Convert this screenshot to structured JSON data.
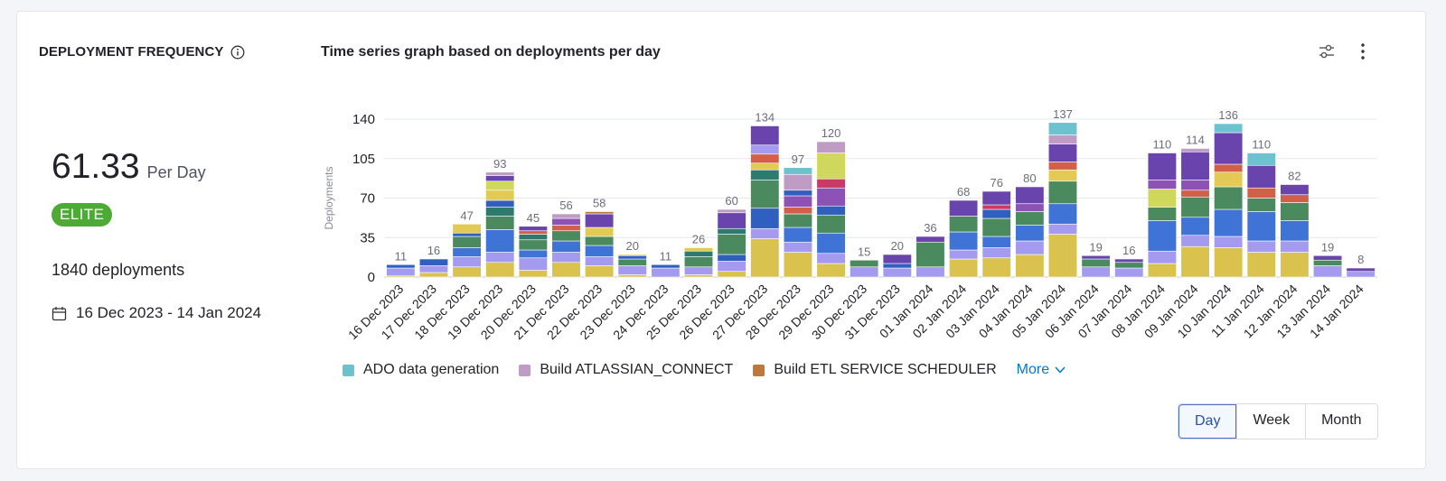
{
  "metric": {
    "title": "DEPLOYMENT FREQUENCY",
    "value": "61.33",
    "unit": "Per Day",
    "badge": "ELITE",
    "deployments": "1840 deployments",
    "date_range": "16 Dec 2023 - 14 Jan 2024"
  },
  "chart_header": {
    "title": "Time series graph based on deployments per day"
  },
  "legend": {
    "items": [
      {
        "label": "ADO data generation",
        "color": "#6cc3cf"
      },
      {
        "label": "Build ATLASSIAN_CONNECT",
        "color": "#be9cc4"
      },
      {
        "label": "Build ETL SERVICE SCHEDULER",
        "color": "#c07838"
      }
    ],
    "more_label": "More"
  },
  "period": {
    "options": [
      "Day",
      "Week",
      "Month"
    ],
    "selected": "Day"
  },
  "chart_data": {
    "type": "bar",
    "stacked": true,
    "ylabel": "Deployments",
    "ylim": [
      0,
      140
    ],
    "yticks": [
      0,
      35,
      70,
      105,
      140
    ],
    "grid": true,
    "legend_position": "bottom",
    "categories": [
      "16 Dec 2023",
      "17 Dec 2023",
      "18 Dec 2023",
      "19 Dec 2023",
      "20 Dec 2023",
      "21 Dec 2023",
      "22 Dec 2023",
      "23 Dec 2023",
      "24 Dec 2023",
      "25 Dec 2023",
      "26 Dec 2023",
      "27 Dec 2023",
      "28 Dec 2023",
      "29 Dec 2023",
      "30 Dec 2023",
      "31 Dec 2023",
      "01 Jan 2024",
      "02 Jan 2024",
      "03 Jan 2024",
      "04 Jan 2024",
      "05 Jan 2024",
      "06 Jan 2024",
      "07 Jan 2024",
      "08 Jan 2024",
      "09 Jan 2024",
      "10 Jan 2024",
      "11 Jan 2024",
      "12 Jan 2024",
      "13 Jan 2024",
      "14 Jan 2024"
    ],
    "totals": [
      11,
      16,
      47,
      93,
      45,
      56,
      58,
      20,
      11,
      26,
      60,
      134,
      97,
      120,
      15,
      20,
      36,
      68,
      76,
      80,
      137,
      19,
      16,
      110,
      114,
      136,
      110,
      82,
      19,
      8
    ],
    "segment_palette": [
      "#d9c24e",
      "#a49bf0",
      "#3f73d6",
      "#2f5fbf",
      "#4b8a5e",
      "#2e7a6e",
      "#e3c956",
      "#d26048",
      "#c93a67",
      "#8e52b4",
      "#6a44ad",
      "#be9cc4",
      "#c07838",
      "#6cc3cf",
      "#cfd85c"
    ],
    "stacks": [
      [
        {
          "c": 0,
          "v": 1
        },
        {
          "c": 1,
          "v": 7
        },
        {
          "c": 3,
          "v": 3
        }
      ],
      [
        {
          "c": 0,
          "v": 4
        },
        {
          "c": 1,
          "v": 6
        },
        {
          "c": 3,
          "v": 6
        }
      ],
      [
        {
          "c": 0,
          "v": 9
        },
        {
          "c": 1,
          "v": 9
        },
        {
          "c": 2,
          "v": 8
        },
        {
          "c": 4,
          "v": 10
        },
        {
          "c": 3,
          "v": 3
        },
        {
          "c": 6,
          "v": 8
        }
      ],
      [
        {
          "c": 0,
          "v": 13
        },
        {
          "c": 1,
          "v": 9
        },
        {
          "c": 2,
          "v": 20
        },
        {
          "c": 4,
          "v": 12
        },
        {
          "c": 5,
          "v": 8
        },
        {
          "c": 3,
          "v": 6
        },
        {
          "c": 6,
          "v": 9
        },
        {
          "c": 14,
          "v": 8
        },
        {
          "c": 10,
          "v": 5
        },
        {
          "c": 11,
          "v": 3
        }
      ],
      [
        {
          "c": 0,
          "v": 6
        },
        {
          "c": 1,
          "v": 11
        },
        {
          "c": 2,
          "v": 7
        },
        {
          "c": 4,
          "v": 9
        },
        {
          "c": 5,
          "v": 5
        },
        {
          "c": 7,
          "v": 3
        },
        {
          "c": 10,
          "v": 4
        }
      ],
      [
        {
          "c": 0,
          "v": 13
        },
        {
          "c": 1,
          "v": 9
        },
        {
          "c": 2,
          "v": 10
        },
        {
          "c": 4,
          "v": 9
        },
        {
          "c": 7,
          "v": 5
        },
        {
          "c": 9,
          "v": 6
        },
        {
          "c": 11,
          "v": 4
        }
      ],
      [
        {
          "c": 0,
          "v": 10
        },
        {
          "c": 1,
          "v": 8
        },
        {
          "c": 2,
          "v": 10
        },
        {
          "c": 4,
          "v": 8
        },
        {
          "c": 6,
          "v": 8
        },
        {
          "c": 10,
          "v": 12
        },
        {
          "c": 12,
          "v": 2
        }
      ],
      [
        {
          "c": 0,
          "v": 2
        },
        {
          "c": 1,
          "v": 8
        },
        {
          "c": 4,
          "v": 6
        },
        {
          "c": 3,
          "v": 3
        },
        {
          "c": 6,
          "v": 1
        }
      ],
      [
        {
          "c": 1,
          "v": 8
        },
        {
          "c": 3,
          "v": 3
        }
      ],
      [
        {
          "c": 0,
          "v": 2
        },
        {
          "c": 1,
          "v": 7
        },
        {
          "c": 4,
          "v": 9
        },
        {
          "c": 5,
          "v": 5
        },
        {
          "c": 6,
          "v": 3
        }
      ],
      [
        {
          "c": 0,
          "v": 5
        },
        {
          "c": 1,
          "v": 9
        },
        {
          "c": 3,
          "v": 6
        },
        {
          "c": 4,
          "v": 18
        },
        {
          "c": 5,
          "v": 5
        },
        {
          "c": 10,
          "v": 14
        },
        {
          "c": 11,
          "v": 3
        }
      ],
      [
        {
          "c": 0,
          "v": 34
        },
        {
          "c": 1,
          "v": 9
        },
        {
          "c": 3,
          "v": 18
        },
        {
          "c": 4,
          "v": 25
        },
        {
          "c": 5,
          "v": 9
        },
        {
          "c": 6,
          "v": 6
        },
        {
          "c": 7,
          "v": 8
        },
        {
          "c": 1,
          "v": 8
        },
        {
          "c": 10,
          "v": 17
        }
      ],
      [
        {
          "c": 0,
          "v": 22
        },
        {
          "c": 1,
          "v": 9
        },
        {
          "c": 2,
          "v": 13
        },
        {
          "c": 4,
          "v": 12
        },
        {
          "c": 7,
          "v": 6
        },
        {
          "c": 9,
          "v": 10
        },
        {
          "c": 3,
          "v": 5
        },
        {
          "c": 11,
          "v": 14
        },
        {
          "c": 13,
          "v": 6
        }
      ],
      [
        {
          "c": 0,
          "v": 12
        },
        {
          "c": 1,
          "v": 9
        },
        {
          "c": 2,
          "v": 18
        },
        {
          "c": 4,
          "v": 16
        },
        {
          "c": 3,
          "v": 8
        },
        {
          "c": 9,
          "v": 16
        },
        {
          "c": 8,
          "v": 8
        },
        {
          "c": 14,
          "v": 23
        },
        {
          "c": 11,
          "v": 10
        }
      ],
      [
        {
          "c": 1,
          "v": 9
        },
        {
          "c": 4,
          "v": 6
        }
      ],
      [
        {
          "c": 1,
          "v": 8
        },
        {
          "c": 3,
          "v": 4
        },
        {
          "c": 10,
          "v": 8
        }
      ],
      [
        {
          "c": 1,
          "v": 9
        },
        {
          "c": 4,
          "v": 22
        },
        {
          "c": 10,
          "v": 5
        }
      ],
      [
        {
          "c": 0,
          "v": 16
        },
        {
          "c": 1,
          "v": 8
        },
        {
          "c": 2,
          "v": 16
        },
        {
          "c": 4,
          "v": 14
        },
        {
          "c": 10,
          "v": 14
        }
      ],
      [
        {
          "c": 0,
          "v": 17
        },
        {
          "c": 1,
          "v": 9
        },
        {
          "c": 2,
          "v": 10
        },
        {
          "c": 4,
          "v": 16
        },
        {
          "c": 3,
          "v": 8
        },
        {
          "c": 8,
          "v": 4
        },
        {
          "c": 10,
          "v": 12
        }
      ],
      [
        {
          "c": 0,
          "v": 20
        },
        {
          "c": 1,
          "v": 12
        },
        {
          "c": 2,
          "v": 14
        },
        {
          "c": 4,
          "v": 12
        },
        {
          "c": 9,
          "v": 7
        },
        {
          "c": 10,
          "v": 15
        }
      ],
      [
        {
          "c": 0,
          "v": 38
        },
        {
          "c": 1,
          "v": 9
        },
        {
          "c": 2,
          "v": 18
        },
        {
          "c": 4,
          "v": 20
        },
        {
          "c": 6,
          "v": 10
        },
        {
          "c": 7,
          "v": 7
        },
        {
          "c": 10,
          "v": 16
        },
        {
          "c": 11,
          "v": 8
        },
        {
          "c": 13,
          "v": 11
        }
      ],
      [
        {
          "c": 1,
          "v": 9
        },
        {
          "c": 4,
          "v": 7
        },
        {
          "c": 10,
          "v": 3
        }
      ],
      [
        {
          "c": 1,
          "v": 8
        },
        {
          "c": 4,
          "v": 5
        },
        {
          "c": 10,
          "v": 3
        }
      ],
      [
        {
          "c": 0,
          "v": 12
        },
        {
          "c": 1,
          "v": 11
        },
        {
          "c": 2,
          "v": 27
        },
        {
          "c": 4,
          "v": 12
        },
        {
          "c": 14,
          "v": 16
        },
        {
          "c": 9,
          "v": 8
        },
        {
          "c": 10,
          "v": 24
        }
      ],
      [
        {
          "c": 0,
          "v": 27
        },
        {
          "c": 1,
          "v": 10
        },
        {
          "c": 2,
          "v": 16
        },
        {
          "c": 4,
          "v": 18
        },
        {
          "c": 7,
          "v": 6
        },
        {
          "c": 9,
          "v": 9
        },
        {
          "c": 10,
          "v": 25
        },
        {
          "c": 11,
          "v": 3
        }
      ],
      [
        {
          "c": 0,
          "v": 26
        },
        {
          "c": 1,
          "v": 10
        },
        {
          "c": 2,
          "v": 24
        },
        {
          "c": 4,
          "v": 20
        },
        {
          "c": 6,
          "v": 13
        },
        {
          "c": 7,
          "v": 7
        },
        {
          "c": 10,
          "v": 28
        },
        {
          "c": 13,
          "v": 8
        }
      ],
      [
        {
          "c": 0,
          "v": 22
        },
        {
          "c": 1,
          "v": 10
        },
        {
          "c": 2,
          "v": 26
        },
        {
          "c": 4,
          "v": 12
        },
        {
          "c": 7,
          "v": 9
        },
        {
          "c": 10,
          "v": 20
        },
        {
          "c": 13,
          "v": 11
        }
      ],
      [
        {
          "c": 0,
          "v": 22
        },
        {
          "c": 1,
          "v": 10
        },
        {
          "c": 2,
          "v": 18
        },
        {
          "c": 4,
          "v": 16
        },
        {
          "c": 7,
          "v": 7
        },
        {
          "c": 10,
          "v": 9
        }
      ],
      [
        {
          "c": 1,
          "v": 10
        },
        {
          "c": 4,
          "v": 5
        },
        {
          "c": 10,
          "v": 4
        }
      ],
      [
        {
          "c": 1,
          "v": 5
        },
        {
          "c": 10,
          "v": 3
        }
      ]
    ]
  }
}
